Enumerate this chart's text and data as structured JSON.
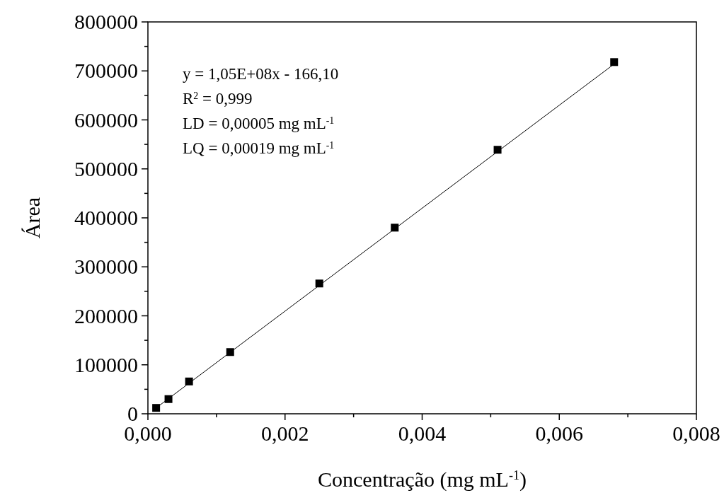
{
  "chart_data": {
    "type": "scatter",
    "xlabel": "Concentração (mg mL$^{-1}$)",
    "ylabel": "Área",
    "x": [
      0.00012,
      0.0003,
      0.0006,
      0.0012,
      0.0025,
      0.0036,
      0.0051,
      0.0068
    ],
    "series": [
      {
        "color": "#000000",
        "marker": "square",
        "values": [
          12000,
          30000,
          66000,
          126000,
          266000,
          380000,
          539000,
          718000
        ]
      },
      {
        "type": "line",
        "color": "#000000",
        "marker": "none",
        "x": [
          0.00012,
          0.0068
        ],
        "values": [
          12000,
          714000
        ]
      }
    ],
    "xlim": [
      0,
      0.008
    ],
    "xticks": [
      {
        "value": 0,
        "label": "0,000"
      },
      {
        "value": 0.001,
        "label": null
      },
      {
        "value": 0.002,
        "label": "0,002"
      },
      {
        "value": 0.003,
        "label": null
      },
      {
        "value": 0.004,
        "label": "0,004"
      },
      {
        "value": 0.005,
        "label": null
      },
      {
        "value": 0.006,
        "label": "0,006"
      },
      {
        "value": 0.007,
        "label": null
      },
      {
        "value": 0.008,
        "label": "0,008"
      }
    ],
    "ylim": [
      0,
      800000
    ],
    "yticks": [
      0,
      {
        "value": 50000,
        "label": null
      },
      100000,
      {
        "value": 150000,
        "label": null
      },
      200000,
      {
        "value": 250000,
        "label": null
      },
      300000,
      {
        "value": 350000,
        "label": null
      },
      400000,
      {
        "value": 450000,
        "label": null
      },
      500000,
      {
        "value": 550000,
        "label": null
      },
      600000,
      {
        "value": 650000,
        "label": null
      },
      700000,
      {
        "value": 750000,
        "label": null
      },
      800000
    ],
    "annotations": [
      "y = 1,05E+08x - 166,10",
      "R$^{2}$ = 0,999",
      "LD = 0,00005 mg mL$^{-1}$",
      "LQ = 0,00019 mg mL$^{-1}$"
    ],
    "grid": false
  }
}
